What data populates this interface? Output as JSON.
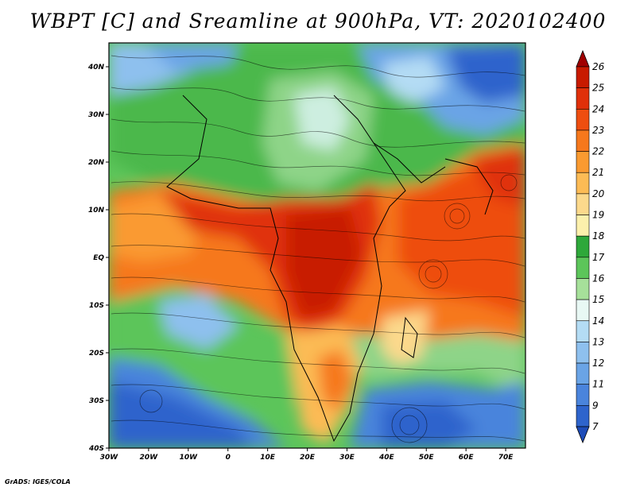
{
  "title": "WBPT [C] and Sreamline at 900hPa, VT: 2020102400",
  "credit": "GrADS: IGES/COLA",
  "map": {
    "lon_labels": [
      "30W",
      "20W",
      "10W",
      "0",
      "10E",
      "20E",
      "30E",
      "40E",
      "50E",
      "60E",
      "70E"
    ],
    "lat_labels": [
      "40N",
      "30N",
      "20N",
      "10N",
      "EQ",
      "10S",
      "20S",
      "30S",
      "40S"
    ],
    "lon_range": [
      -30,
      75
    ],
    "lat_range": [
      -40,
      45
    ]
  },
  "colorbar": {
    "labels": [
      "26",
      "25",
      "24",
      "23",
      "22",
      "21",
      "20",
      "19",
      "18",
      "17",
      "16",
      "15",
      "14",
      "13",
      "12",
      "11",
      "9",
      "7"
    ],
    "colors": [
      "#a00000",
      "#c81a00",
      "#e0300a",
      "#ee4e10",
      "#f6781c",
      "#fa9a30",
      "#fcbb55",
      "#fcd98c",
      "#fcf0ac",
      "#2ea83a",
      "#5cc55a",
      "#a6e09a",
      "#e8f8f4",
      "#b4dcf4",
      "#8ec0ee",
      "#6aa4e6",
      "#4a84dc",
      "#2e64cc",
      "#1e4cb8"
    ]
  },
  "field_regions": [
    {
      "name": "north-africa-arabia",
      "level": "16",
      "color": "#5cc55a"
    },
    {
      "name": "central-africa-maximum",
      "level": "25",
      "color": "#c81a00"
    },
    {
      "name": "indian-ocean-warm",
      "level": "23",
      "color": "#ee4e10"
    },
    {
      "name": "southern-ocean-cold",
      "level": "11",
      "color": "#4a84dc"
    },
    {
      "name": "asia-cold",
      "level": "12",
      "color": "#6aa4e6"
    }
  ]
}
